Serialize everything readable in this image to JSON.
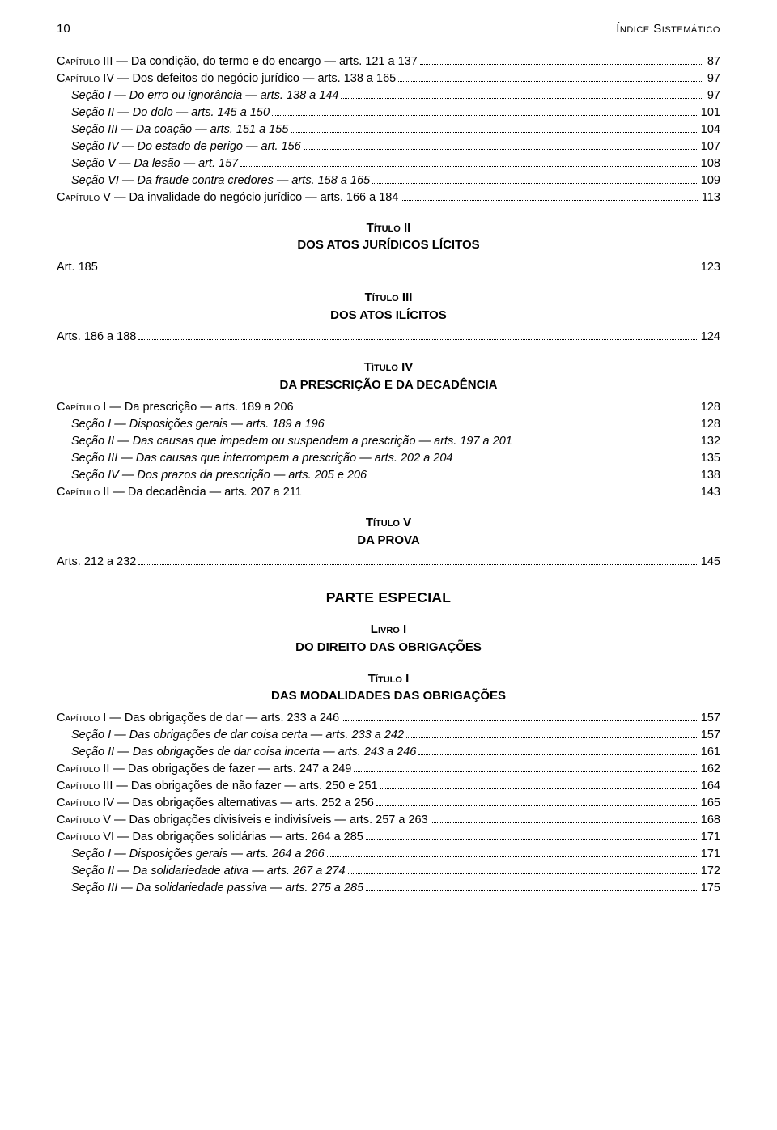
{
  "header": {
    "page_number": "10",
    "title": "Índice Sistemático"
  },
  "block1": [
    {
      "label_pre": "Capítulo",
      "label": " III — Da condição, do termo e do encargo — arts. 121 a 137",
      "page": "87",
      "indent": 0,
      "sc": true
    },
    {
      "label_pre": "Capítulo",
      "label": " IV — Dos defeitos do negócio jurídico — arts. 138 a 165",
      "page": "97",
      "indent": 0,
      "sc": true
    },
    {
      "label": "Seção I — Do erro ou ignorância — arts. 138 a 144",
      "page": "97",
      "indent": 1
    },
    {
      "label": "Seção II — Do dolo — arts. 145 a 150",
      "page": "101",
      "indent": 1
    },
    {
      "label": "Seção III — Da coação — arts. 151 a 155",
      "page": "104",
      "indent": 1
    },
    {
      "label": "Seção IV — Do estado de perigo — art. 156",
      "page": "107",
      "indent": 1
    },
    {
      "label": "Seção V — Da lesão — art. 157",
      "page": "108",
      "indent": 1
    },
    {
      "label": "Seção VI — Da fraude contra credores — arts. 158 a 165",
      "page": "109",
      "indent": 1
    },
    {
      "label_pre": "Capítulo",
      "label": " V — Da invalidade do negócio jurídico — arts. 166 a 184",
      "page": "113",
      "indent": 0,
      "sc": true
    }
  ],
  "heading2": {
    "t1": "Título II",
    "t2": "DOS ATOS JURÍDICOS LÍCITOS"
  },
  "block2": [
    {
      "label": "Art. 185",
      "page": "123",
      "indent": 0
    }
  ],
  "heading3": {
    "t1": "Título III",
    "t2": "DOS ATOS ILÍCITOS"
  },
  "block3": [
    {
      "label": "Arts. 186 a 188",
      "page": "124",
      "indent": 0
    }
  ],
  "heading4": {
    "t1": "Título IV",
    "t2": "DA PRESCRIÇÃO E DA DECADÊNCIA"
  },
  "block4": [
    {
      "label_pre": "Capítulo",
      "label": " I — Da prescrição — arts. 189 a 206",
      "page": "128",
      "indent": 0,
      "sc": true
    },
    {
      "label": "Seção I — Disposições gerais — arts. 189 a 196",
      "page": "128",
      "indent": 1
    },
    {
      "label": "Seção II — Das causas que impedem ou suspendem a prescrição — arts. 197 a 201",
      "page": "132",
      "indent": 1
    },
    {
      "label": "Seção III — Das causas que interrompem a prescrição — arts. 202 a 204",
      "page": "135",
      "indent": 1
    },
    {
      "label": "Seção IV — Dos prazos da prescrição — arts. 205 e 206",
      "page": "138",
      "indent": 1
    },
    {
      "label_pre": "Capítulo",
      "label": " II — Da decadência — arts. 207 a 211",
      "page": "143",
      "indent": 0,
      "sc": true
    }
  ],
  "heading5": {
    "t1": "Título V",
    "t2": "DA PROVA"
  },
  "block5": [
    {
      "label": "Arts. 212 a 232",
      "page": "145",
      "indent": 0
    }
  ],
  "big_heading": "PARTE ESPECIAL",
  "heading6": {
    "t1": "Livro I",
    "t2": "DO DIREITO DAS OBRIGAÇÕES"
  },
  "heading7": {
    "t1": "Título I",
    "t2": "DAS MODALIDADES DAS OBRIGAÇÕES"
  },
  "block6": [
    {
      "label_pre": "Capítulo",
      "label": " I — Das obrigações de dar — arts. 233 a 246",
      "page": "157",
      "indent": 0,
      "sc": true
    },
    {
      "label": "Seção I — Das obrigações de dar coisa certa — arts. 233 a 242",
      "page": "157",
      "indent": 1
    },
    {
      "label": "Seção II — Das obrigações de dar coisa incerta — arts. 243 a 246",
      "page": "161",
      "indent": 1
    },
    {
      "label_pre": "Capítulo",
      "label": " II — Das obrigações de fazer — arts. 247 a 249",
      "page": "162",
      "indent": 0,
      "sc": true
    },
    {
      "label_pre": "Capítulo",
      "label": " III — Das obrigações de não fazer — arts. 250 e 251",
      "page": "164",
      "indent": 0,
      "sc": true
    },
    {
      "label_pre": "Capítulo",
      "label": " IV — Das obrigações alternativas — arts. 252 a 256",
      "page": "165",
      "indent": 0,
      "sc": true
    },
    {
      "label_pre": "Capítulo",
      "label": " V — Das obrigações divisíveis e indivisíveis — arts. 257 a 263",
      "page": "168",
      "indent": 0,
      "sc": true
    },
    {
      "label_pre": "Capítulo",
      "label": " VI — Das obrigações solidárias — arts. 264 a 285",
      "page": "171",
      "indent": 0,
      "sc": true
    },
    {
      "label": "Seção I — Disposições gerais — arts. 264 a 266",
      "page": "171",
      "indent": 1
    },
    {
      "label": "Seção II — Da solidariedade ativa — arts. 267 a 274",
      "page": "172",
      "indent": 1
    },
    {
      "label": "Seção III — Da solidariedade passiva — arts. 275 a 285",
      "page": "175",
      "indent": 1
    }
  ]
}
